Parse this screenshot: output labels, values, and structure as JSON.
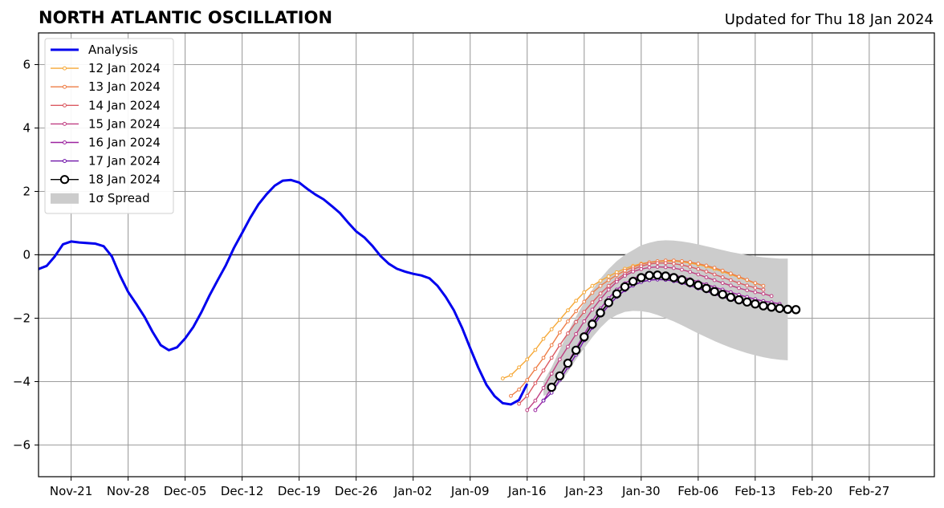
{
  "title": "NORTH ATLANTIC OSCILLATION",
  "subtitle": "Updated for Thu 18 Jan 2024",
  "colors": {
    "analysis": "#0000ee",
    "spread": "#cccccc",
    "forecasts": [
      "#f6a836",
      "#ee7d46",
      "#db5a62",
      "#c03f82",
      "#9c24a0",
      "#6f13a8",
      "#000000"
    ]
  },
  "chart_data": {
    "type": "line",
    "x_unit": "date",
    "xlim": [
      "2023-11-17",
      "2024-03-06"
    ],
    "ylim": [
      -7,
      7
    ],
    "yticks": [
      -6,
      -4,
      -2,
      0,
      2,
      4,
      6
    ],
    "ytick_labels": [
      "−6",
      "−4",
      "−2",
      "0",
      "2",
      "4",
      "6"
    ],
    "xticks": [
      "2023-11-21",
      "2023-11-28",
      "2023-12-05",
      "2023-12-12",
      "2023-12-19",
      "2023-12-26",
      "2024-01-02",
      "2024-01-09",
      "2024-01-16",
      "2024-01-23",
      "2024-01-30",
      "2024-02-06",
      "2024-02-13",
      "2024-02-20",
      "2024-02-27"
    ],
    "xtick_labels": [
      "Nov-21",
      "Nov-28",
      "Dec-05",
      "Dec-12",
      "Dec-19",
      "Dec-26",
      "Jan-02",
      "Jan-09",
      "Jan-16",
      "Jan-23",
      "Jan-30",
      "Feb-06",
      "Feb-13",
      "Feb-20",
      "Feb-27"
    ],
    "grid": true,
    "zero_line": true,
    "legend_position": "upper-left",
    "analysis": {
      "name": "Analysis",
      "start": "2023-11-17",
      "values": [
        -0.45,
        -0.35,
        -0.05,
        0.33,
        0.42,
        0.39,
        0.37,
        0.35,
        0.27,
        -0.05,
        -0.65,
        -1.17,
        -1.55,
        -1.95,
        -2.43,
        -2.85,
        -3.01,
        -2.92,
        -2.64,
        -2.28,
        -1.81,
        -1.28,
        -0.8,
        -0.33,
        0.22,
        0.69,
        1.17,
        1.59,
        1.91,
        2.18,
        2.34,
        2.36,
        2.28,
        2.08,
        1.9,
        1.75,
        1.54,
        1.32,
        1.02,
        0.74,
        0.55,
        0.28,
        -0.04,
        -0.28,
        -0.44,
        -0.53,
        -0.6,
        -0.65,
        -0.74,
        -0.98,
        -1.33,
        -1.75,
        -2.3,
        -2.94,
        -3.56,
        -4.1,
        -4.46,
        -4.68,
        -4.72,
        -4.58,
        -4.07
      ]
    },
    "spread": {
      "name": "1σ Spread",
      "start": "2024-01-18",
      "upper": [
        -4.0,
        -3.55,
        -3.0,
        -2.45,
        -1.95,
        -1.5,
        -1.1,
        -0.75,
        -0.45,
        -0.2,
        0.0,
        0.15,
        0.3,
        0.38,
        0.44,
        0.46,
        0.45,
        0.42,
        0.38,
        0.33,
        0.27,
        0.21,
        0.15,
        0.09,
        0.04,
        -0.01,
        -0.05,
        -0.08,
        -0.1,
        -0.12,
        -0.12
      ],
      "lower": [
        -4.45,
        -4.35,
        -4.05,
        -3.7,
        -3.3,
        -2.95,
        -2.6,
        -2.3,
        -2.05,
        -1.9,
        -1.8,
        -1.77,
        -1.78,
        -1.82,
        -1.9,
        -2.0,
        -2.1,
        -2.22,
        -2.35,
        -2.48,
        -2.6,
        -2.72,
        -2.83,
        -2.93,
        -3.02,
        -3.1,
        -3.17,
        -3.23,
        -3.28,
        -3.31,
        -3.33
      ]
    },
    "series": [
      {
        "name": "12 Jan 2024",
        "start": "2024-01-13",
        "values": [
          -3.9,
          -3.8,
          -3.55,
          -3.3,
          -3.0,
          -2.65,
          -2.35,
          -2.05,
          -1.75,
          -1.45,
          -1.18,
          -0.98,
          -0.82,
          -0.68,
          -0.55,
          -0.44,
          -0.35,
          -0.28,
          -0.24,
          -0.21,
          -0.2,
          -0.2,
          -0.22,
          -0.26,
          -0.31,
          -0.37,
          -0.45,
          -0.53,
          -0.62,
          -0.71,
          -0.8,
          -0.9
        ]
      },
      {
        "name": "13 Jan 2024",
        "start": "2024-01-14",
        "values": [
          -4.45,
          -4.25,
          -3.95,
          -3.6,
          -3.25,
          -2.85,
          -2.45,
          -2.1,
          -1.78,
          -1.48,
          -1.2,
          -0.98,
          -0.8,
          -0.64,
          -0.5,
          -0.39,
          -0.3,
          -0.24,
          -0.2,
          -0.18,
          -0.18,
          -0.2,
          -0.23,
          -0.28,
          -0.34,
          -0.41,
          -0.5,
          -0.59,
          -0.69,
          -0.79,
          -0.89,
          -0.98
        ]
      },
      {
        "name": "14 Jan 2024",
        "start": "2024-01-15",
        "values": [
          -4.7,
          -4.45,
          -4.05,
          -3.65,
          -3.25,
          -2.85,
          -2.48,
          -2.12,
          -1.8,
          -1.5,
          -1.22,
          -0.98,
          -0.78,
          -0.6,
          -0.46,
          -0.36,
          -0.29,
          -0.26,
          -0.26,
          -0.28,
          -0.32,
          -0.38,
          -0.45,
          -0.53,
          -0.62,
          -0.71,
          -0.8,
          -0.89,
          -0.97,
          -1.04,
          -1.1
        ]
      },
      {
        "name": "15 Jan 2024",
        "start": "2024-01-16",
        "values": [
          -4.9,
          -4.6,
          -4.2,
          -3.75,
          -3.3,
          -2.9,
          -2.5,
          -2.1,
          -1.73,
          -1.4,
          -1.1,
          -0.85,
          -0.66,
          -0.53,
          -0.45,
          -0.4,
          -0.38,
          -0.39,
          -0.42,
          -0.47,
          -0.54,
          -0.62,
          -0.71,
          -0.8,
          -0.89,
          -0.97,
          -1.05,
          -1.12,
          -1.18,
          -1.23,
          -1.3
        ]
      },
      {
        "name": "16 Jan 2024",
        "start": "2024-01-17",
        "values": [
          -4.9,
          -4.6,
          -4.2,
          -3.8,
          -3.4,
          -2.95,
          -2.5,
          -2.08,
          -1.7,
          -1.37,
          -1.1,
          -0.9,
          -0.75,
          -0.65,
          -0.6,
          -0.58,
          -0.6,
          -0.64,
          -0.7,
          -0.77,
          -0.85,
          -0.93,
          -1.02,
          -1.1,
          -1.18,
          -1.26,
          -1.33,
          -1.4,
          -1.46,
          -1.5,
          -1.55
        ]
      },
      {
        "name": "17 Jan 2024",
        "start": "2024-01-18",
        "values": [
          -4.6,
          -4.35,
          -3.95,
          -3.55,
          -3.15,
          -2.7,
          -2.3,
          -1.92,
          -1.6,
          -1.33,
          -1.12,
          -0.97,
          -0.86,
          -0.8,
          -0.78,
          -0.79,
          -0.83,
          -0.89,
          -0.97,
          -1.06,
          -1.15,
          -1.24,
          -1.33,
          -1.41,
          -1.48,
          -1.55,
          -1.6,
          -1.65,
          -1.68
        ]
      },
      {
        "name": "18 Jan 2024",
        "start": "2024-01-19",
        "values": [
          -4.18,
          -3.82,
          -3.42,
          -3.01,
          -2.59,
          -2.19,
          -1.83,
          -1.51,
          -1.23,
          -1.01,
          -0.84,
          -0.72,
          -0.65,
          -0.64,
          -0.67,
          -0.72,
          -0.79,
          -0.87,
          -0.96,
          -1.06,
          -1.16,
          -1.25,
          -1.34,
          -1.42,
          -1.49,
          -1.55,
          -1.61,
          -1.65,
          -1.69,
          -1.72,
          -1.73
        ]
      }
    ]
  }
}
